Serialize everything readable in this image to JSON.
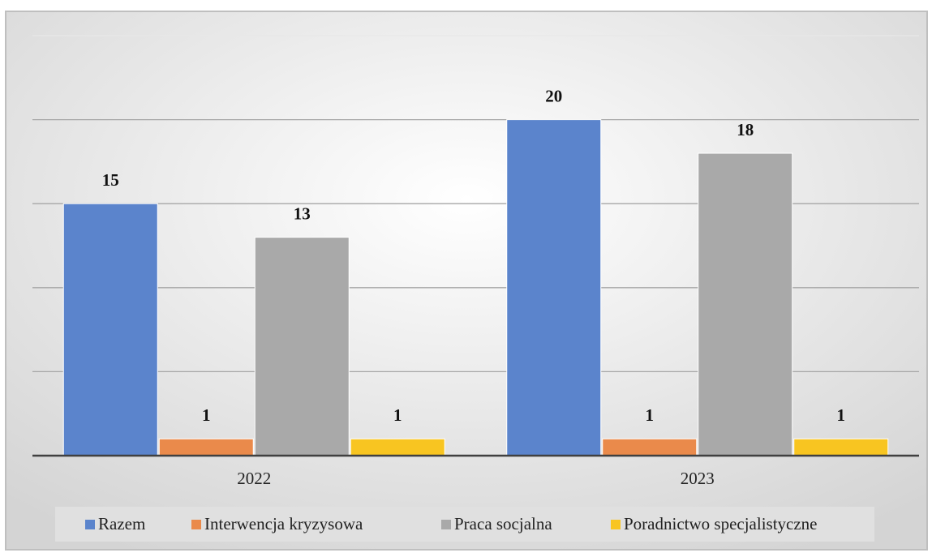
{
  "chart_data": {
    "type": "bar",
    "categories": [
      "2022",
      "2023"
    ],
    "series": [
      {
        "name": "Razem",
        "color": "#5b84cc",
        "values": [
          15,
          20
        ]
      },
      {
        "name": "Interwencja kryzysowa",
        "color": "#ea8a4b",
        "values": [
          1,
          1
        ]
      },
      {
        "name": "Praca socjalna",
        "color": "#a9a9a9",
        "values": [
          13,
          18
        ]
      },
      {
        "name": "Poradnictwo specjalistyczne",
        "color": "#f8c521",
        "values": [
          1,
          1
        ]
      }
    ],
    "ylim": [
      0,
      25
    ],
    "yticks": [
      0,
      5,
      10,
      15,
      20,
      25
    ],
    "grid": true,
    "legend": "bottom"
  }
}
